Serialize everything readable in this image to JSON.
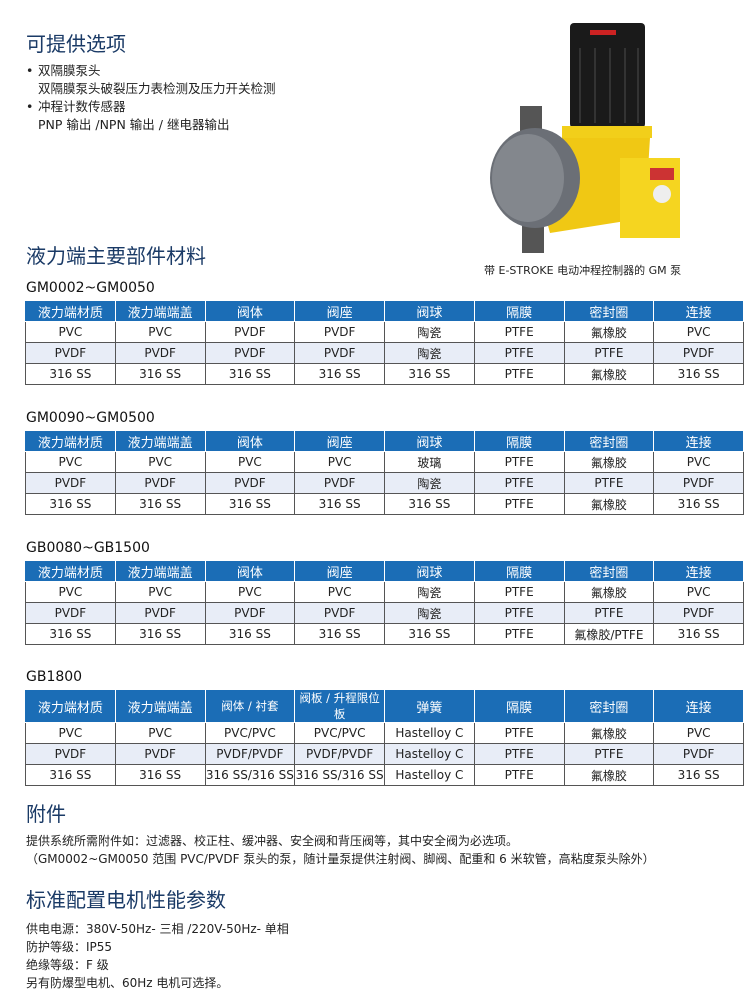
{
  "options": {
    "title": "可提供选项",
    "items": [
      {
        "label": "双隔膜泵头",
        "detail": "双隔膜泵头破裂压力表检测及压力开关检测"
      },
      {
        "label": "冲程计数传感器",
        "detail": "PNP 输出 /NPN 输出 / 继电器输出"
      }
    ]
  },
  "product_image": {
    "caption": "带 E-STROKE 电动冲程控制器的 GM 泵"
  },
  "materials": {
    "title": "液力端主要部件材料",
    "tables": [
      {
        "model": "GM0002~GM0050",
        "headers": [
          "液力端材质",
          "液力端端盖",
          "阀体",
          "阀座",
          "阀球",
          "隔膜",
          "密封圈",
          "连接"
        ],
        "rows": [
          [
            "PVC",
            "PVC",
            "PVDF",
            "PVDF",
            "陶瓷",
            "PTFE",
            "氟橡胶",
            "PVC"
          ],
          [
            "PVDF",
            "PVDF",
            "PVDF",
            "PVDF",
            "陶瓷",
            "PTFE",
            "PTFE",
            "PVDF"
          ],
          [
            "316 SS",
            "316 SS",
            "316 SS",
            "316 SS",
            "316 SS",
            "PTFE",
            "氟橡胶",
            "316 SS"
          ]
        ]
      },
      {
        "model": "GM0090~GM0500",
        "headers": [
          "液力端材质",
          "液力端端盖",
          "阀体",
          "阀座",
          "阀球",
          "隔膜",
          "密封圈",
          "连接"
        ],
        "rows": [
          [
            "PVC",
            "PVC",
            "PVC",
            "PVC",
            "玻璃",
            "PTFE",
            "氟橡胶",
            "PVC"
          ],
          [
            "PVDF",
            "PVDF",
            "PVDF",
            "PVDF",
            "陶瓷",
            "PTFE",
            "PTFE",
            "PVDF"
          ],
          [
            "316 SS",
            "316 SS",
            "316 SS",
            "316 SS",
            "316 SS",
            "PTFE",
            "氟橡胶",
            "316 SS"
          ]
        ]
      },
      {
        "model": "GB0080~GB1500",
        "headers": [
          "液力端材质",
          "液力端端盖",
          "阀体",
          "阀座",
          "阀球",
          "隔膜",
          "密封圈",
          "连接"
        ],
        "rows": [
          [
            "PVC",
            "PVC",
            "PVC",
            "PVC",
            "陶瓷",
            "PTFE",
            "氟橡胶",
            "PVC"
          ],
          [
            "PVDF",
            "PVDF",
            "PVDF",
            "PVDF",
            "陶瓷",
            "PTFE",
            "PTFE",
            "PVDF"
          ],
          [
            "316 SS",
            "316 SS",
            "316 SS",
            "316 SS",
            "316 SS",
            "PTFE",
            "氟橡胶/PTFE",
            "316 SS"
          ]
        ]
      },
      {
        "model": "GB1800",
        "headers": [
          "液力端材质",
          "液力端端盖",
          "阀体 / 衬套",
          "阀板 / 升程限位板",
          "弹簧",
          "隔膜",
          "密封圈",
          "连接"
        ],
        "rows": [
          [
            "PVC",
            "PVC",
            "PVC/PVC",
            "PVC/PVC",
            "Hastelloy C",
            "PTFE",
            "氟橡胶",
            "PVC"
          ],
          [
            "PVDF",
            "PVDF",
            "PVDF/PVDF",
            "PVDF/PVDF",
            "Hastelloy C",
            "PTFE",
            "PTFE",
            "PVDF"
          ],
          [
            "316 SS",
            "316 SS",
            "316 SS/316 SS",
            "316 SS/316 SS",
            "Hastelloy C",
            "PTFE",
            "氟橡胶",
            "316 SS"
          ]
        ]
      }
    ]
  },
  "accessories": {
    "title": "附件",
    "lines": [
      "提供系统所需附件如：过滤器、校正柱、缓冲器、安全阀和背压阀等，其中安全阀为必选项。",
      "（GM0002~GM0050 范围 PVC/PVDF 泵头的泵，随计量泵提供注射阀、脚阀、配重和 6 米软管，高粘度泵头除外）"
    ]
  },
  "motor": {
    "title": "标准配置电机性能参数",
    "lines": [
      "供电电源：380V-50Hz- 三相 /220V-50Hz- 单相",
      "防护等级：IP55",
      "绝缘等级：F 级",
      "另有防爆型电机、60Hz 电机可选择。"
    ]
  },
  "colors": {
    "header_blue": "#1b6db6",
    "title_navy": "#1a3a66",
    "row_alt": "#e8edf7",
    "pump_yellow": "#f2cf1a"
  }
}
